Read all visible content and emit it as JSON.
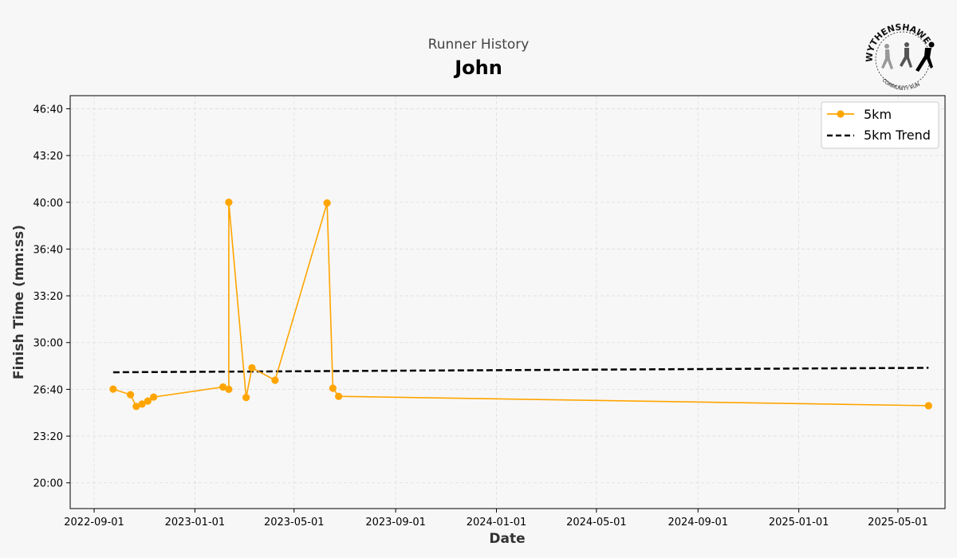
{
  "header": {
    "subtitle": "Runner History",
    "title": "John"
  },
  "logo": {
    "top_text": "WYTHENSHAWE",
    "bottom_text": "COMMUNITY RUN"
  },
  "chart_data": {
    "type": "line",
    "subtitle": "Runner History",
    "title": "John",
    "xlabel": "Date",
    "ylabel": "Finish Time (mm:ss)",
    "xlim": [
      "2022-08-03",
      "2025-06-27"
    ],
    "ylim_seconds": [
      1090,
      2856
    ],
    "grid": true,
    "legend_position": "top-right",
    "x_ticks": [
      "2022-09-01",
      "2023-01-01",
      "2023-05-01",
      "2023-09-01",
      "2024-01-01",
      "2024-05-01",
      "2024-09-01",
      "2025-01-01",
      "2025-05-01"
    ],
    "y_ticks": [
      "20:00",
      "23:20",
      "26:40",
      "30:00",
      "33:20",
      "36:40",
      "40:00",
      "43:20",
      "46:40"
    ],
    "y_ticks_seconds": [
      1200,
      1400,
      1600,
      1800,
      2000,
      2200,
      2400,
      2600,
      2800
    ],
    "series": [
      {
        "name": "5km",
        "color": "#FFA500",
        "marker": "circle",
        "points": [
          {
            "date": "2022-09-24",
            "time": "26:41"
          },
          {
            "date": "2022-10-15",
            "time": "26:17"
          },
          {
            "date": "2022-10-22",
            "time": "25:27"
          },
          {
            "date": "2022-10-29",
            "time": "25:37"
          },
          {
            "date": "2022-11-05",
            "time": "25:50"
          },
          {
            "date": "2022-11-12",
            "time": "26:07"
          },
          {
            "date": "2023-02-04",
            "time": "26:50"
          },
          {
            "date": "2023-02-11",
            "time": "26:40"
          },
          {
            "date": "2023-02-11",
            "time": "40:00"
          },
          {
            "date": "2023-03-04",
            "time": "26:05"
          },
          {
            "date": "2023-03-11",
            "time": "28:12"
          },
          {
            "date": "2023-04-08",
            "time": "27:19"
          },
          {
            "date": "2023-06-10",
            "time": "39:57"
          },
          {
            "date": "2023-06-17",
            "time": "26:45"
          },
          {
            "date": "2023-06-24",
            "time": "26:10"
          },
          {
            "date": "2025-06-07",
            "time": "25:30"
          }
        ]
      },
      {
        "name": "5km Trend",
        "color": "#000000",
        "style": "dashed",
        "points": [
          {
            "date": "2022-09-24",
            "time": "27:53"
          },
          {
            "date": "2025-06-07",
            "time": "28:12"
          }
        ]
      }
    ]
  }
}
